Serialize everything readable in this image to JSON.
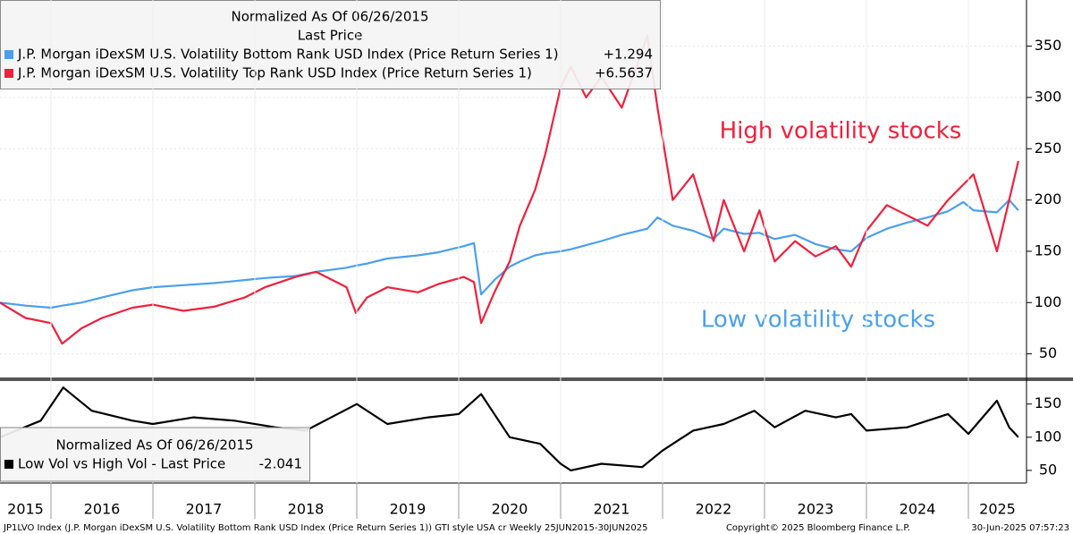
{
  "chart_data": [
    {
      "type": "line",
      "legend_title": "Normalized As Of 06/26/2015",
      "legend_subtitle": "Last Price",
      "legend": "top-left",
      "annotations": [
        {
          "text": "High volatility stocks",
          "color": "#f0203c"
        },
        {
          "text": "Low volatility stocks",
          "color": "#4aa0ee"
        }
      ],
      "x": [
        2015.5,
        2015.75,
        2016.0,
        2016.11,
        2016.3,
        2016.5,
        2016.8,
        2017.0,
        2017.3,
        2017.6,
        2017.9,
        2018.1,
        2018.4,
        2018.6,
        2018.9,
        2018.99,
        2019.1,
        2019.3,
        2019.6,
        2019.8,
        2020.05,
        2020.15,
        2020.22,
        2020.35,
        2020.5,
        2020.6,
        2020.75,
        2020.85,
        2021.0,
        2021.1,
        2021.25,
        2021.4,
        2021.6,
        2021.85,
        2021.95,
        2022.1,
        2022.3,
        2022.5,
        2022.6,
        2022.8,
        2022.95,
        2023.1,
        2023.3,
        2023.5,
        2023.7,
        2023.85,
        2024.0,
        2024.2,
        2024.4,
        2024.6,
        2024.8,
        2024.95,
        2025.05,
        2025.28,
        2025.4,
        2025.49
      ],
      "series": [
        {
          "name": "J.P. Morgan iDexSM U.S. Volatility Bottom Rank USD Index (Price Return Series 1)",
          "last_value_label": "+1.294",
          "color": "#4aa0ee",
          "values": [
            100,
            97,
            95,
            97,
            100,
            105,
            112,
            115,
            117,
            119,
            122,
            124,
            126,
            130,
            134,
            136,
            138,
            143,
            146,
            149,
            155,
            158,
            108,
            122,
            135,
            140,
            146,
            148,
            150,
            152,
            156,
            160,
            166,
            172,
            183,
            175,
            170,
            162,
            172,
            167,
            168,
            162,
            166,
            157,
            152,
            150,
            163,
            172,
            178,
            183,
            189,
            198,
            190,
            188,
            200,
            190
          ]
        },
        {
          "name": "J.P. Morgan iDexSM U.S. Volatility Top Rank USD Index (Price Return Series 1)",
          "last_value_label": "+6.5637",
          "color": "#f0203c",
          "values": [
            100,
            85,
            80,
            60,
            75,
            85,
            95,
            98,
            92,
            96,
            105,
            115,
            125,
            130,
            115,
            90,
            105,
            115,
            110,
            118,
            125,
            120,
            80,
            110,
            140,
            175,
            210,
            245,
            310,
            330,
            300,
            320,
            290,
            360,
            290,
            200,
            225,
            160,
            200,
            150,
            190,
            140,
            160,
            145,
            155,
            135,
            170,
            195,
            185,
            175,
            200,
            215,
            225,
            150,
            200,
            238
          ]
        }
      ],
      "xlim": [
        2015.5,
        2025.57
      ],
      "ylim": [
        27,
        395
      ],
      "yticks": [
        50,
        100,
        150,
        200,
        250,
        300,
        350
      ]
    },
    {
      "type": "line",
      "legend_title": "Normalized As Of 06/26/2015",
      "legend": "bottom-left",
      "x": [
        2015.5,
        2015.9,
        2016.12,
        2016.4,
        2016.8,
        2017.0,
        2017.4,
        2017.8,
        2018.2,
        2018.5,
        2019.0,
        2019.3,
        2019.7,
        2020.0,
        2020.22,
        2020.5,
        2020.8,
        2021.0,
        2021.1,
        2021.4,
        2021.8,
        2022.0,
        2022.3,
        2022.6,
        2022.9,
        2023.1,
        2023.4,
        2023.7,
        2023.85,
        2024.0,
        2024.4,
        2024.6,
        2024.8,
        2025.0,
        2025.28,
        2025.4,
        2025.49
      ],
      "series": [
        {
          "name": "Low Vol vs High Vol - Last Price",
          "last_value_label": "-2.041",
          "color": "#000000",
          "values": [
            100,
            125,
            175,
            140,
            125,
            120,
            130,
            125,
            115,
            110,
            150,
            120,
            130,
            135,
            165,
            100,
            90,
            60,
            50,
            60,
            55,
            80,
            110,
            120,
            140,
            115,
            140,
            130,
            135,
            110,
            115,
            125,
            135,
            105,
            155,
            115,
            100
          ]
        }
      ],
      "xlim": [
        2015.5,
        2025.57
      ],
      "xticks": [
        2015,
        2016,
        2017,
        2018,
        2019,
        2020,
        2021,
        2022,
        2023,
        2024,
        2025
      ],
      "ylim": [
        31,
        182
      ],
      "yticks": [
        50,
        100,
        150
      ]
    }
  ],
  "footer": {
    "left": "JP1LVO Index (J.P. Morgan iDexSM U.S. Volatility Bottom Rank USD Index (Price Return Series 1)) GTI style USA cr  Weekly 25JUN2015-30JUN2025",
    "center": "Copyright© 2025 Bloomberg Finance L.P.",
    "right": "30-Jun-2025 07:57:23"
  }
}
